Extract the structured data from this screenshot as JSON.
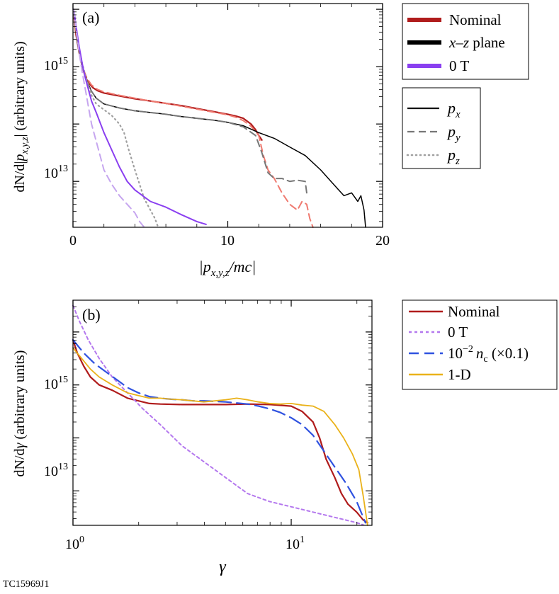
{
  "figure_id": "TC15969J1",
  "colors": {
    "nominal": "#b01c1c",
    "nominal_light": "#ef7a70",
    "xz": "#000000",
    "xz_gray": "#777777",
    "xz_lightgray": "#a0a0a0",
    "zero_t": "#8a3ff0",
    "zero_t_light": "#c6a6ef",
    "nc": "#2f52e0",
    "oned": "#eab21a"
  },
  "chart_data": [
    {
      "type": "line",
      "panel_label": "(a)",
      "xlabel": "|p_{x,y,z}/mc|",
      "ylabel": "dN/d|p_{x,y,z}| (arbitrary units)",
      "xscale": "linear",
      "yscale": "log",
      "xlim": [
        0,
        20
      ],
      "ylim_log10": [
        12.2,
        16.1
      ],
      "x_ticks": [
        0,
        10,
        20
      ],
      "x_tick_labels": [
        "0",
        "10",
        "20"
      ],
      "y_ticks_log10": [
        13,
        15
      ],
      "y_tick_labels": [
        "10",
        "10"
      ],
      "y_tick_exponents": [
        "13",
        "15"
      ],
      "legend_runs": {
        "position": "outside-top-right",
        "entries": [
          {
            "key": "nominal",
            "label": "Nominal",
            "color": "#b01c1c"
          },
          {
            "key": "xz",
            "label": "x–z plane",
            "label_italic": "x–z",
            "label_rest": " plane",
            "color": "#000000"
          },
          {
            "key": "zero_t",
            "label": "0 T",
            "color": "#8a3ff0"
          }
        ]
      },
      "legend_components": {
        "position": "outside-right",
        "entries": [
          {
            "style": "solid",
            "label": "p",
            "subscript": "x"
          },
          {
            "style": "dashed",
            "label": "p",
            "subscript": "y"
          },
          {
            "style": "dotted",
            "label": "p",
            "subscript": "z"
          }
        ]
      },
      "series": [
        {
          "name": "Nominal p_x",
          "color": "#b01c1c",
          "style": "solid",
          "width": 2.2,
          "x": [
            0.05,
            0.2,
            0.4,
            0.6,
            0.8,
            1.0,
            1.3,
            1.6,
            2,
            3,
            4,
            5,
            6,
            7,
            8,
            9,
            10,
            10.5,
            11,
            11.5,
            11.8,
            12.0,
            12.2
          ],
          "log10y": [
            15.9,
            15.55,
            15.25,
            15.0,
            14.82,
            14.72,
            14.63,
            14.58,
            14.54,
            14.49,
            14.44,
            14.4,
            14.36,
            14.32,
            14.27,
            14.22,
            14.17,
            14.14,
            14.1,
            14.0,
            13.9,
            13.8,
            13.72
          ]
        },
        {
          "name": "Nominal p_y",
          "color": "#ef7a70",
          "style": "dashed",
          "width": 2.0,
          "x": [
            0.05,
            0.3,
            0.6,
            0.9,
            1.2,
            1.6,
            2,
            3,
            4,
            5,
            6,
            7,
            8,
            9,
            10,
            10.5,
            11,
            11.5,
            12,
            12.3,
            12.6,
            13,
            13.5,
            14,
            14.5,
            14.8,
            15.1,
            15.3,
            15.5
          ],
          "log10y": [
            15.9,
            15.4,
            15.0,
            14.8,
            14.68,
            14.6,
            14.56,
            14.5,
            14.45,
            14.4,
            14.36,
            14.31,
            14.26,
            14.21,
            14.16,
            14.12,
            14.06,
            13.96,
            13.8,
            13.45,
            13.2,
            13.05,
            12.8,
            12.6,
            12.5,
            12.65,
            12.6,
            12.35,
            12.2
          ]
        },
        {
          "name": "x-z plane p_x",
          "color": "#000000",
          "style": "solid",
          "width": 1.5,
          "x": [
            0.05,
            0.3,
            0.6,
            0.9,
            1.2,
            1.5,
            2,
            3,
            4,
            5,
            6,
            7,
            8,
            9,
            10,
            11,
            12,
            13,
            14,
            15,
            16,
            17,
            17.5,
            18,
            18.4,
            18.6,
            18.8,
            18.9
          ],
          "log10y": [
            15.95,
            15.4,
            15.0,
            14.75,
            14.57,
            14.45,
            14.35,
            14.28,
            14.23,
            14.2,
            14.17,
            14.13,
            14.1,
            14.07,
            14.03,
            13.97,
            13.85,
            13.75,
            13.6,
            13.45,
            13.2,
            12.9,
            12.75,
            12.8,
            12.65,
            12.75,
            12.5,
            12.2
          ]
        },
        {
          "name": "x-z plane p_y",
          "color": "#777777",
          "style": "dashed",
          "width": 2.0,
          "x": [
            0.05,
            0.3,
            0.6,
            0.9,
            1.2,
            1.5,
            2,
            3,
            4,
            5,
            6,
            7,
            8,
            9,
            10,
            11,
            11.8,
            12.2,
            12.6,
            13,
            13.5,
            14,
            14.5,
            15,
            15.1
          ],
          "log10y": [
            15.95,
            15.4,
            15.0,
            14.75,
            14.57,
            14.45,
            14.35,
            14.28,
            14.23,
            14.2,
            14.17,
            14.13,
            14.1,
            14.07,
            14.03,
            13.95,
            13.8,
            13.5,
            13.15,
            13.05,
            13.05,
            13.0,
            13.02,
            13.0,
            12.8
          ]
        },
        {
          "name": "x-z plane p_z",
          "color": "#a0a0a0",
          "style": "dotted",
          "width": 2.2,
          "x": [
            0.05,
            0.3,
            0.6,
            0.9,
            1.2,
            1.5,
            2,
            2.5,
            3,
            3.3,
            3.6,
            4,
            4.3,
            4.6,
            5,
            5.3,
            5.5
          ],
          "log10y": [
            15.95,
            15.45,
            15.05,
            14.75,
            14.5,
            14.35,
            14.25,
            14.15,
            14.0,
            13.85,
            13.55,
            13.2,
            12.95,
            12.7,
            12.5,
            12.35,
            12.2
          ]
        },
        {
          "name": "0 T p_x",
          "color": "#8a3ff0",
          "style": "solid",
          "width": 2.0,
          "x": [
            0.05,
            0.2,
            0.4,
            0.6,
            0.8,
            1.0,
            1.2,
            1.5,
            2,
            2.5,
            3,
            3.5,
            4,
            4.5,
            5,
            6,
            7,
            8,
            8.6
          ],
          "log10y": [
            16.0,
            15.7,
            15.35,
            15.05,
            14.8,
            14.6,
            14.4,
            14.2,
            13.85,
            13.55,
            13.25,
            13.0,
            12.85,
            12.75,
            12.65,
            12.55,
            12.42,
            12.3,
            12.25
          ]
        },
        {
          "name": "0 T p_y",
          "color": "#c6a6ef",
          "style": "dashed",
          "width": 2.0,
          "x": [
            0.05,
            0.2,
            0.4,
            0.6,
            0.8,
            1.0,
            1.2,
            1.5,
            2,
            2.5,
            3,
            3.5,
            4,
            4.3,
            4.6
          ],
          "log10y": [
            16.0,
            15.65,
            15.25,
            14.9,
            14.6,
            14.3,
            14.0,
            13.7,
            13.2,
            12.95,
            12.75,
            12.6,
            12.45,
            12.3,
            12.2
          ]
        }
      ]
    },
    {
      "type": "line",
      "panel_label": "(b)",
      "xlabel": "γ",
      "ylabel": "dN/dγ (arbitrary units)",
      "xscale": "log",
      "yscale": "log",
      "xlim_log10": [
        0,
        1.37
      ],
      "ylim_log10": [
        12.35,
        16.6
      ],
      "x_ticks_log10": [
        0,
        1
      ],
      "x_tick_labels": [
        "10",
        "10"
      ],
      "x_tick_exponents": [
        "0",
        "1"
      ],
      "y_ticks_log10": [
        13,
        15
      ],
      "y_tick_labels": [
        "10",
        "10"
      ],
      "y_tick_exponents": [
        "13",
        "15"
      ],
      "legend": {
        "position": "outside-top-right",
        "entries": [
          {
            "key": "nominal",
            "label": "Nominal",
            "color": "#b01c1c",
            "style": "solid"
          },
          {
            "key": "zero_t",
            "label": "0 T",
            "color": "#b478ee",
            "style": "dotted"
          },
          {
            "key": "nc",
            "label": "10",
            "label_sup": "−2",
            "label_var": "n",
            "label_sub": "c",
            "label_tail": " (×0.1)",
            "color": "#2f52e0",
            "style": "dashed"
          },
          {
            "key": "oned",
            "label": "1-D",
            "color": "#eab21a",
            "style": "solid"
          }
        ]
      },
      "series": [
        {
          "name": "Nominal",
          "color": "#b01c1c",
          "style": "solid",
          "width": 2.2,
          "log10x": [
            0,
            0.02,
            0.05,
            0.08,
            0.12,
            0.18,
            0.25,
            0.3,
            0.35,
            0.4,
            0.5,
            0.6,
            0.7,
            0.8,
            0.9,
            1.0,
            1.05,
            1.1,
            1.13,
            1.16,
            1.2,
            1.23,
            1.26,
            1.3,
            1.33,
            1.35
          ],
          "log10y": [
            15.85,
            15.6,
            15.35,
            15.15,
            15.0,
            14.9,
            14.75,
            14.7,
            14.65,
            14.64,
            14.63,
            14.63,
            14.63,
            14.64,
            14.63,
            14.6,
            14.5,
            14.3,
            14.0,
            13.6,
            13.25,
            12.95,
            12.75,
            12.6,
            12.45,
            12.4
          ]
        },
        {
          "name": "0 T",
          "color": "#b478ee",
          "style": "dotted",
          "width": 2.0,
          "log10x": [
            0,
            0.03,
            0.07,
            0.12,
            0.18,
            0.25,
            0.32,
            0.4,
            0.5,
            0.6,
            0.7,
            0.8,
            0.9,
            1.0,
            1.1,
            1.2,
            1.25,
            1.3,
            1.33
          ],
          "log10y": [
            16.5,
            16.2,
            15.85,
            15.5,
            15.15,
            14.85,
            14.55,
            14.25,
            13.85,
            13.55,
            13.25,
            12.95,
            12.8,
            12.7,
            12.6,
            12.5,
            12.45,
            12.4,
            12.36
          ]
        },
        {
          "name": "10^-2 n_c (x0.1)",
          "color": "#2f52e0",
          "style": "dashed",
          "width": 2.2,
          "log10x": [
            0,
            0.05,
            0.1,
            0.15,
            0.2,
            0.25,
            0.3,
            0.35,
            0.4,
            0.45,
            0.5,
            0.55,
            0.6,
            0.65,
            0.7,
            0.75,
            0.8,
            0.85,
            0.9,
            0.95,
            1.0,
            1.05,
            1.1,
            1.15,
            1.2,
            1.25,
            1.3,
            1.32,
            1.34
          ],
          "log10y": [
            15.85,
            15.6,
            15.4,
            15.25,
            15.1,
            14.95,
            14.85,
            14.78,
            14.75,
            14.73,
            14.72,
            14.7,
            14.7,
            14.69,
            14.68,
            14.66,
            14.64,
            14.6,
            14.55,
            14.48,
            14.38,
            14.25,
            14.05,
            13.75,
            13.45,
            13.15,
            12.8,
            12.6,
            12.4
          ]
        },
        {
          "name": "1-D",
          "color": "#eab21a",
          "style": "solid",
          "width": 1.8,
          "log10x": [
            0,
            0.04,
            0.08,
            0.12,
            0.18,
            0.25,
            0.3,
            0.35,
            0.4,
            0.45,
            0.5,
            0.55,
            0.6,
            0.65,
            0.7,
            0.75,
            0.8,
            0.85,
            0.9,
            0.95,
            1.0,
            1.05,
            1.1,
            1.15,
            1.2,
            1.24,
            1.28,
            1.31,
            1.33,
            1.35
          ],
          "log10y": [
            15.7,
            15.5,
            15.3,
            15.15,
            15.0,
            14.85,
            14.8,
            14.75,
            14.75,
            14.73,
            14.72,
            14.7,
            14.68,
            14.7,
            14.72,
            14.75,
            14.72,
            14.68,
            14.65,
            14.64,
            14.65,
            14.62,
            14.6,
            14.5,
            14.25,
            14.0,
            13.7,
            13.4,
            12.9,
            12.35
          ]
        }
      ]
    }
  ]
}
